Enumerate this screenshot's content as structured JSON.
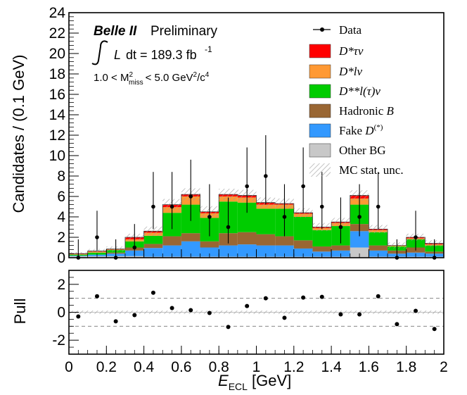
{
  "chart_data": [
    {
      "type": "stacked-bar",
      "name": "main-panel",
      "xlim": [
        0,
        2
      ],
      "ylim": [
        0,
        24
      ],
      "ylabel": "Candidates / (0.1 GeV)",
      "yticks": [
        0,
        2,
        4,
        6,
        8,
        10,
        12,
        14,
        16,
        18,
        20,
        22,
        24
      ],
      "bin_edges": [
        0,
        0.1,
        0.2,
        0.3,
        0.4,
        0.5,
        0.6,
        0.7,
        0.8,
        0.9,
        1.0,
        1.1,
        1.2,
        1.3,
        1.4,
        1.5,
        1.6,
        1.7,
        1.8,
        1.9,
        2.0
      ],
      "series": [
        {
          "name": "Other BG",
          "color": "#c8c8c8",
          "values": [
            0.15,
            0.15,
            0.15,
            0.15,
            0.1,
            0.1,
            0.1,
            0.1,
            0.1,
            0.1,
            0.1,
            0.1,
            0.1,
            0.1,
            0.1,
            1.0,
            0.1,
            0.1,
            0.1,
            0.1
          ]
        },
        {
          "name": "Fake D(*)",
          "color": "#3399ff",
          "values": [
            0.05,
            0.15,
            0.25,
            0.55,
            0.85,
            1.1,
            1.5,
            0.9,
            1.1,
            1.2,
            1.1,
            1.1,
            0.8,
            0.5,
            0.6,
            1.6,
            0.6,
            0.3,
            0.4,
            0.3
          ]
        },
        {
          "name": "Hadronic B",
          "color": "#996633",
          "values": [
            0.0,
            0.0,
            0.1,
            0.3,
            0.4,
            0.9,
            0.8,
            0.6,
            1.2,
            1.2,
            1.1,
            0.9,
            0.8,
            0.5,
            0.5,
            0.7,
            0.5,
            0.3,
            0.5,
            0.2
          ]
        },
        {
          "name": "D**l(tau)nu",
          "color": "#00cc00",
          "values": [
            0.1,
            0.2,
            0.25,
            0.6,
            0.8,
            2.3,
            2.8,
            2.3,
            3.1,
            2.9,
            2.5,
            2.7,
            2.3,
            1.6,
            1.9,
            1.9,
            1.3,
            0.4,
            0.8,
            0.6
          ]
        },
        {
          "name": "D*l nu",
          "color": "#ff9933",
          "values": [
            0.05,
            0.1,
            0.05,
            0.2,
            0.3,
            0.55,
            0.8,
            0.45,
            0.5,
            0.5,
            0.4,
            0.4,
            0.3,
            0.2,
            0.3,
            0.6,
            0.2,
            0.1,
            0.1,
            0.1
          ]
        },
        {
          "name": "D*tau nu",
          "color": "#ff0000",
          "values": [
            0.05,
            0.05,
            0.05,
            0.2,
            0.15,
            0.25,
            0.2,
            0.15,
            0.2,
            0.2,
            0.2,
            0.1,
            0.1,
            0.1,
            0.1,
            0.3,
            0.1,
            0.0,
            0.1,
            0.1
          ]
        }
      ],
      "mc_stat_unc": [
        0.15,
        0.2,
        0.25,
        0.35,
        0.45,
        0.55,
        0.6,
        0.55,
        0.55,
        0.55,
        0.5,
        0.5,
        0.45,
        0.4,
        0.4,
        0.5,
        0.4,
        0.3,
        0.35,
        0.3
      ],
      "data": {
        "x": [
          0.05,
          0.15,
          0.25,
          0.35,
          0.45,
          0.55,
          0.65,
          0.75,
          0.85,
          0.95,
          1.05,
          1.15,
          1.25,
          1.35,
          1.45,
          1.55,
          1.65,
          1.75,
          1.85,
          1.95
        ],
        "y": [
          0,
          2,
          0,
          1,
          5,
          5,
          6,
          4,
          3,
          7,
          8,
          4,
          7,
          5,
          3,
          4,
          5,
          0,
          2,
          0
        ],
        "err_up": [
          1.8,
          2.6,
          1.8,
          2.3,
          3.4,
          3.4,
          3.6,
          3.2,
          2.9,
          3.8,
          4.0,
          3.2,
          3.8,
          3.4,
          2.9,
          3.2,
          3.4,
          1.8,
          2.6,
          1.8
        ],
        "err_down": [
          0,
          1.3,
          0,
          0.8,
          2.2,
          2.2,
          2.4,
          1.9,
          1.6,
          2.6,
          2.8,
          1.9,
          2.6,
          2.2,
          1.6,
          1.9,
          2.2,
          0,
          1.3,
          0
        ]
      },
      "legend": {
        "placement": "top-right",
        "entries": [
          {
            "label": "Data",
            "kind": "marker"
          },
          {
            "label": "D*τν",
            "kind": "fill",
            "color": "#ff0000"
          },
          {
            "label": "D*lν",
            "kind": "fill",
            "color": "#ff9933"
          },
          {
            "label": "D**l(τ)ν",
            "kind": "fill",
            "color": "#00cc00"
          },
          {
            "label": "Hadronic B",
            "kind": "fill",
            "color": "#996633"
          },
          {
            "label": "Fake D(*)",
            "kind": "fill",
            "color": "#3399ff"
          },
          {
            "label": "Other BG",
            "kind": "fill",
            "color": "#c8c8c8"
          },
          {
            "label": "MC stat. unc.",
            "kind": "hatch"
          }
        ]
      },
      "annotations": {
        "experiment": "Belle II",
        "status": "Preliminary",
        "luminosity": "∫ L dt = 189.3 fb⁻¹",
        "cut": "1.0 < M²miss < 5.0 GeV²/c⁴"
      }
    },
    {
      "type": "scatter",
      "name": "pull-panel",
      "xlim": [
        0,
        2
      ],
      "ylim": [
        -3,
        3
      ],
      "ylabel": "Pull",
      "xlabel": "E_ECL [GeV]",
      "xticks": [
        0,
        0.2,
        0.4,
        0.6,
        0.8,
        1,
        1.2,
        1.4,
        1.6,
        1.8,
        2
      ],
      "yticks": [
        -2,
        0,
        2
      ],
      "reference_lines": [
        -1,
        1
      ],
      "x": [
        0.05,
        0.15,
        0.25,
        0.35,
        0.45,
        0.55,
        0.65,
        0.75,
        0.85,
        0.95,
        1.05,
        1.15,
        1.25,
        1.35,
        1.45,
        1.55,
        1.65,
        1.75,
        1.85,
        1.95
      ],
      "y": [
        -0.3,
        1.15,
        -0.65,
        -0.2,
        1.4,
        0.3,
        0.15,
        -0.05,
        -1.05,
        0.45,
        1.0,
        -0.4,
        1.05,
        1.1,
        -0.15,
        -0.15,
        1.15,
        -0.85,
        0.1,
        -1.2
      ]
    }
  ],
  "text": {
    "y_axis_main": "Candidates / (0.1 GeV)",
    "y_axis_pull": "Pull",
    "x_axis_main": "E",
    "x_axis_sub": "ECL",
    "x_axis_unit": " [GeV]",
    "belle": "Belle II",
    "prelim": "Preliminary",
    "lumi_L": "L",
    "lumi_dt": "dt = 189.3 fb",
    "lumi_exp": "-1",
    "cut_pre": "1.0 < M",
    "cut_sup": "2",
    "cut_sub": "miss",
    "cut_post": "< 5.0 GeV",
    "cut_post_sup": "2",
    "cut_c": "/c",
    "cut_c_sup": "4",
    "leg_data": "Data",
    "leg_dtaunu": "D*τν",
    "leg_dlnu": "D*lν",
    "leg_dss": "D**l(τ)ν",
    "leg_hadb": "Hadronic",
    "leg_hadb_b": "B",
    "leg_fake": "Fake",
    "leg_fake_d": "D",
    "leg_fake_sup": "(*)",
    "leg_other": "Other BG",
    "leg_mcunc": "MC stat. unc."
  }
}
